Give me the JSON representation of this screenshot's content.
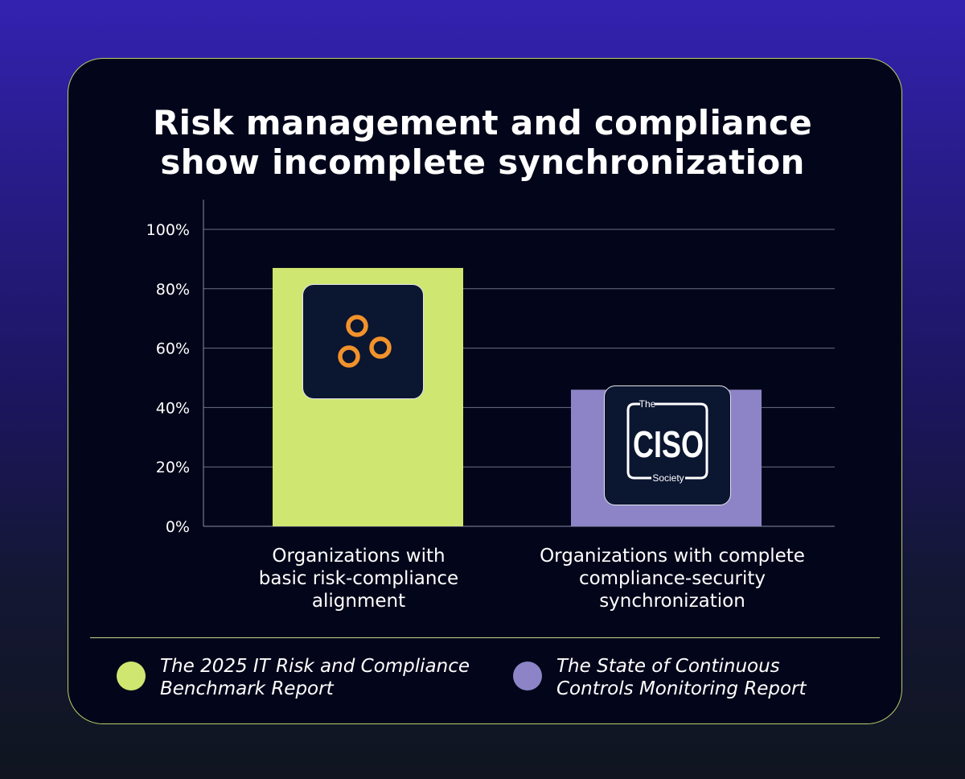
{
  "title": {
    "line1": "Risk management and compliance",
    "line2": "show incomplete synchronization"
  },
  "chart_data": {
    "type": "bar",
    "title": "Risk management and compliance show incomplete synchronization",
    "categories": [
      "Organizations with basic risk-compliance alignment",
      "Organizations with complete compliance-security synchronization"
    ],
    "values": [
      87,
      46
    ],
    "bar_colors": [
      "#cfe670",
      "#8d84c7"
    ],
    "y_ticks": [
      {
        "value": 0,
        "label": "0%"
      },
      {
        "value": 20,
        "label": "20%"
      },
      {
        "value": 40,
        "label": "40%"
      },
      {
        "value": 60,
        "label": "60%"
      },
      {
        "value": 80,
        "label": "80%"
      },
      {
        "value": 100,
        "label": "100%"
      }
    ],
    "ylim": [
      0,
      110
    ],
    "grid": true,
    "legend_position": "bottom"
  },
  "categories_display": {
    "cat1_line1": "Organizations with",
    "cat1_line2": "basic risk-compliance",
    "cat1_line3": "alignment",
    "cat2_line1": "Organizations with complete",
    "cat2_line2": "compliance-security",
    "cat2_line3": "synchronization"
  },
  "legend": [
    {
      "line1": "The 2025 IT Risk and Compliance",
      "line2": "Benchmark Report",
      "color": "#cfe670"
    },
    {
      "line1": "The State of Continuous",
      "line2": "Controls Monitoring Report",
      "color": "#8d84c7"
    }
  ],
  "logos": {
    "ciso_the": "The",
    "ciso_main": "CISO",
    "ciso_society": "Society",
    "rings_icon": "three-rings-logo-icon"
  },
  "colors": {
    "card_bg": "#03061a",
    "card_border": "#b8cf6a",
    "ring_orange": "#f2922b"
  }
}
